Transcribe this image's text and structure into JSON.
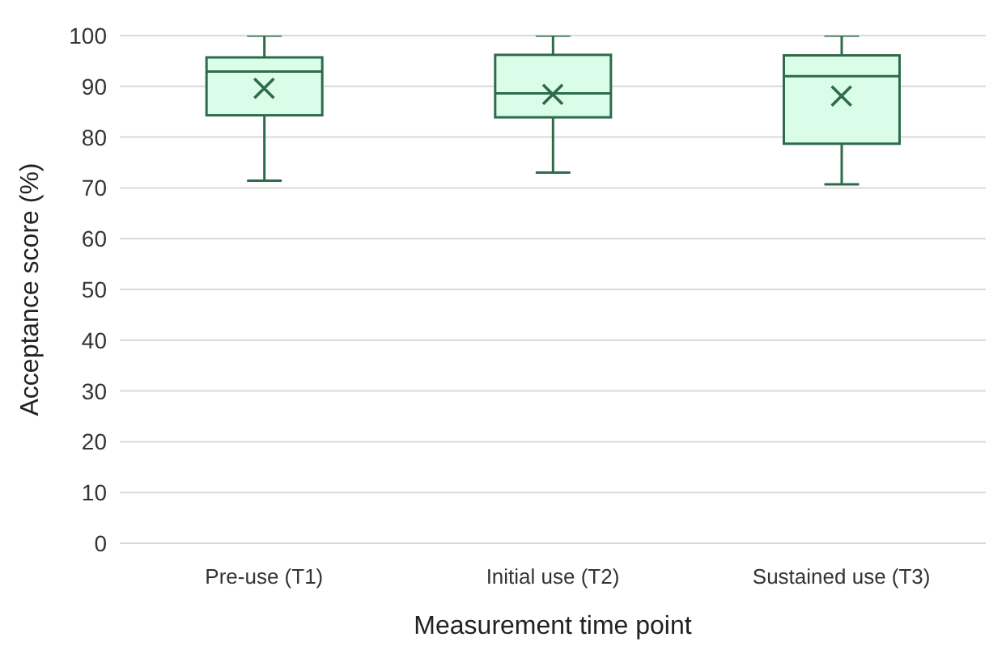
{
  "chart_data": {
    "type": "box",
    "xlabel": "Measurement time point",
    "ylabel": "Acceptance  score  (%)",
    "categories": [
      "Pre-use (T1)",
      "Initial use (T2)",
      "Sustained use (T3)"
    ],
    "color": "#2e6b4a",
    "ylim": [
      0,
      100
    ],
    "yticks": [
      0,
      10,
      20,
      30,
      40,
      50,
      60,
      70,
      80,
      90,
      100
    ],
    "grid": "y",
    "boxes": [
      {
        "low": 71.4,
        "q1": 84.3,
        "median": 92.9,
        "q3": 95.7,
        "high": 100,
        "mean": 89.6
      },
      {
        "low": 73.0,
        "q1": 83.9,
        "median": 88.6,
        "q3": 96.2,
        "high": 100,
        "mean": 88.4
      },
      {
        "low": 70.7,
        "q1": 78.7,
        "median": 92.0,
        "q3": 96.1,
        "high": 100,
        "mean": 88.1
      }
    ]
  }
}
